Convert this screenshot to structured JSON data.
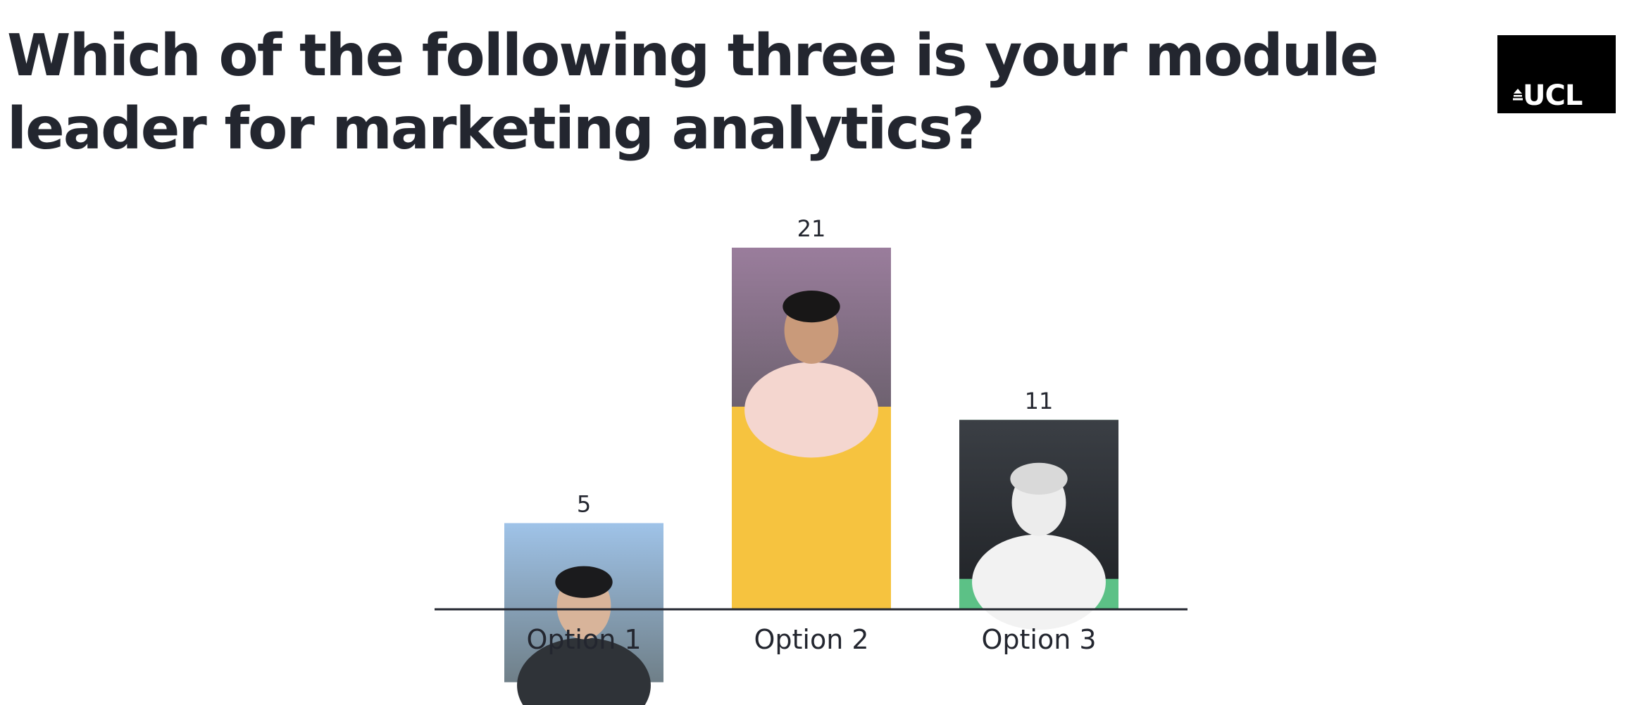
{
  "question": "Which of the following three is your module leader for marketing analytics?",
  "logo": {
    "text": "UCL"
  },
  "colors": {
    "text": "#23262f",
    "axis": "#23262f",
    "option_1": "#5f99ea",
    "option_2": "#f6c33f",
    "option_3": "#5cc186"
  },
  "chart_data": {
    "type": "bar",
    "categories": [
      "Option 1",
      "Option 2",
      "Option 3"
    ],
    "values": [
      5,
      21,
      11
    ],
    "title": "Which of the following three is your module leader for marketing analytics?",
    "xlabel": "",
    "ylabel": "",
    "ylim": [
      0,
      21
    ],
    "grid": false,
    "legend": "none",
    "data_labels": true
  }
}
